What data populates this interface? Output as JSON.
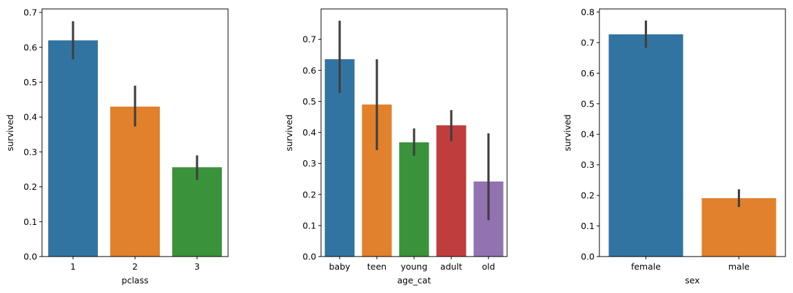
{
  "colors": [
    "#3274a1",
    "#e1812c",
    "#3a923a",
    "#c03d3e",
    "#9372b2"
  ],
  "errorbar_color": "#3f3f3f",
  "chart_data": [
    {
      "type": "bar",
      "xlabel": "pclass",
      "ylabel": "survived",
      "categories": [
        "1",
        "2",
        "3"
      ],
      "values": [
        0.62,
        0.43,
        0.256
      ],
      "ci": [
        [
          0.565,
          0.675
        ],
        [
          0.373,
          0.49
        ],
        [
          0.22,
          0.29
        ]
      ],
      "ylim": [
        0,
        0.71
      ],
      "yticks": [
        0.0,
        0.1,
        0.2,
        0.3,
        0.4,
        0.5,
        0.6,
        0.7
      ],
      "ytick_labels": [
        "0.0",
        "0.1",
        "0.2",
        "0.3",
        "0.4",
        "0.5",
        "0.6",
        "0.7"
      ],
      "grid": false,
      "legend": "none"
    },
    {
      "type": "bar",
      "xlabel": "age_cat",
      "ylabel": "survived",
      "categories": [
        "baby",
        "teen",
        "young",
        "adult",
        "old"
      ],
      "values": [
        0.636,
        0.49,
        0.368,
        0.423,
        0.242
      ],
      "ci": [
        [
          0.527,
          0.76
        ],
        [
          0.343,
          0.636
        ],
        [
          0.325,
          0.413
        ],
        [
          0.372,
          0.472
        ],
        [
          0.117,
          0.397
        ]
      ],
      "ylim": [
        0,
        0.798
      ],
      "yticks": [
        0.0,
        0.1,
        0.2,
        0.3,
        0.4,
        0.5,
        0.6,
        0.7
      ],
      "ytick_labels": [
        "0.0",
        "0.1",
        "0.2",
        "0.3",
        "0.4",
        "0.5",
        "0.6",
        "0.7"
      ],
      "grid": false,
      "legend": "none"
    },
    {
      "type": "bar",
      "xlabel": "sex",
      "ylabel": "survived",
      "categories": [
        "female",
        "male"
      ],
      "values": [
        0.727,
        0.191
      ],
      "ci": [
        [
          0.683,
          0.772
        ],
        [
          0.162,
          0.22
        ]
      ],
      "ylim": [
        0,
        0.81
      ],
      "yticks": [
        0.0,
        0.1,
        0.2,
        0.3,
        0.4,
        0.5,
        0.6,
        0.7,
        0.8
      ],
      "ytick_labels": [
        "0.0",
        "0.1",
        "0.2",
        "0.3",
        "0.4",
        "0.5",
        "0.6",
        "0.7",
        "0.8"
      ],
      "grid": false,
      "legend": "none"
    }
  ]
}
